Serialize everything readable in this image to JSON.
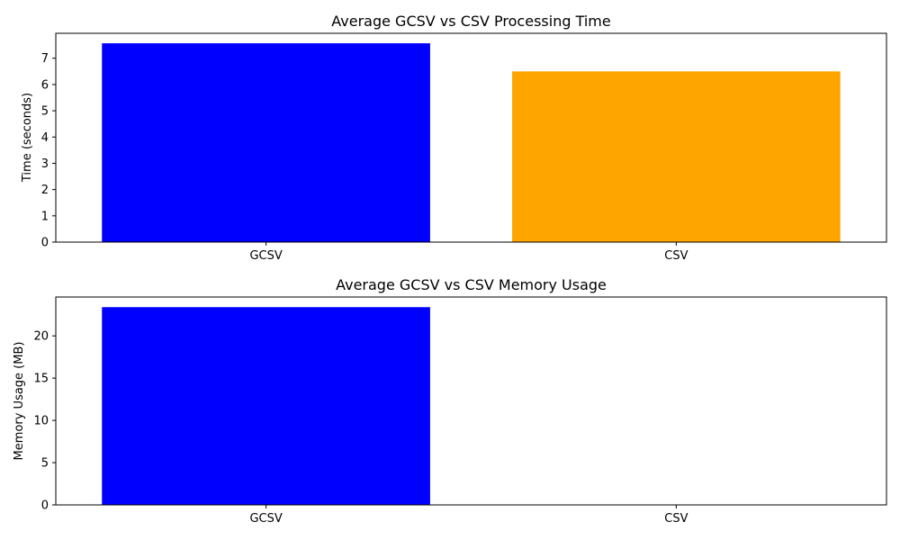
{
  "chart_data": [
    {
      "type": "bar",
      "title": "Average GCSV vs CSV Processing Time",
      "xlabel": "",
      "ylabel": "Time (seconds)",
      "categories": [
        "GCSV",
        "CSV"
      ],
      "values": [
        7.57,
        6.5
      ],
      "colors": [
        "#0000ff",
        "#ffa500"
      ],
      "ylim": [
        0,
        7.95
      ],
      "yticks": [
        "0",
        "1",
        "2",
        "3",
        "4",
        "5",
        "6",
        "7"
      ],
      "grid": false
    },
    {
      "type": "bar",
      "title": "Average GCSV vs CSV Memory Usage",
      "xlabel": "",
      "ylabel": "Memory Usage (MB)",
      "categories": [
        "GCSV",
        "CSV"
      ],
      "values": [
        23.4,
        0
      ],
      "colors": [
        "#0000ff",
        "#ffa500"
      ],
      "ylim": [
        0,
        24.6
      ],
      "yticks": [
        "0",
        "5",
        "10",
        "15",
        "20"
      ],
      "grid": false
    }
  ]
}
